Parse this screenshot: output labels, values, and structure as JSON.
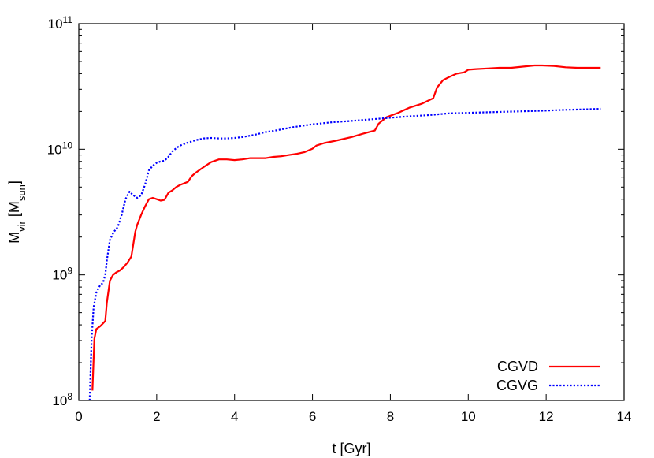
{
  "chart_data": {
    "type": "line",
    "title": "",
    "xlabel": "t [Gyr]",
    "ylabel": {
      "base": "M",
      "base_subscript": "vir",
      "unit_open": " [M",
      "unit_subscript": "sun",
      "unit_close": "]"
    },
    "xlim": [
      0,
      14
    ],
    "ylim": [
      100000000,
      100000000000
    ],
    "yscale": "log",
    "x_ticks": [
      "0",
      "2",
      "4",
      "6",
      "8",
      "10",
      "12",
      "14"
    ],
    "y_ticks": [
      {
        "base": "10",
        "exp": "8"
      },
      {
        "base": "10",
        "exp": "9"
      },
      {
        "base": "10",
        "exp": "10"
      },
      {
        "base": "10",
        "exp": "11"
      }
    ],
    "grid": false,
    "legend_position": "bottom-right",
    "series": [
      {
        "name": "CGVD",
        "color": "#ff0000",
        "style": "solid",
        "x": [
          0.35,
          0.4,
          0.45,
          0.5,
          0.55,
          0.62,
          0.68,
          0.72,
          0.8,
          0.88,
          0.97,
          1.05,
          1.15,
          1.25,
          1.35,
          1.45,
          1.5,
          1.6,
          1.7,
          1.8,
          1.9,
          2.0,
          2.1,
          2.2,
          2.3,
          2.4,
          2.5,
          2.6,
          2.8,
          2.9,
          3.0,
          3.2,
          3.4,
          3.6,
          3.8,
          4.0,
          4.2,
          4.4,
          4.6,
          4.8,
          5.0,
          5.2,
          5.4,
          5.6,
          5.8,
          6.0,
          6.1,
          6.3,
          6.6,
          7.0,
          7.3,
          7.6,
          7.7,
          7.9,
          8.2,
          8.5,
          8.8,
          9.1,
          9.2,
          9.35,
          9.5,
          9.7,
          9.9,
          10.0,
          10.2,
          10.5,
          10.8,
          11.1,
          11.4,
          11.7,
          11.9,
          12.2,
          12.5,
          12.8,
          13.1,
          13.4
        ],
        "y": [
          120000000,
          310000000,
          370000000,
          380000000,
          390000000,
          410000000,
          430000000,
          600000000,
          900000000,
          1000000000,
          1050000000,
          1080000000,
          1150000000,
          1250000000,
          1400000000,
          2200000000,
          2500000000,
          3000000000,
          3500000000,
          4000000000,
          4100000000,
          4000000000,
          3900000000,
          3950000000,
          4500000000,
          4700000000,
          5000000000,
          5200000000,
          5500000000,
          6100000000,
          6500000000,
          7200000000,
          7900000000,
          8300000000,
          8300000000,
          8200000000,
          8300000000,
          8500000000,
          8500000000,
          8500000000,
          8700000000,
          8800000000,
          9000000000,
          9200000000,
          9500000000,
          10100000000,
          10700000000,
          11200000000,
          11700000000,
          12500000000,
          13300000000,
          14100000000,
          16000000000,
          18000000000,
          19500000000,
          21500000000,
          23000000000,
          25500000000,
          31000000000,
          35500000000,
          37500000000,
          40000000000,
          41000000000,
          43000000000,
          43500000000,
          44000000000,
          44500000000,
          44500000000,
          45500000000,
          46500000000,
          46500000000,
          46000000000,
          45000000000,
          44500000000,
          44500000000,
          44500000000
        ]
      },
      {
        "name": "CGVG",
        "color": "#0000ff",
        "style": "dotted",
        "x": [
          0.28,
          0.33,
          0.38,
          0.45,
          0.55,
          0.62,
          0.68,
          0.72,
          0.8,
          0.9,
          1.0,
          1.1,
          1.2,
          1.3,
          1.4,
          1.5,
          1.6,
          1.7,
          1.8,
          1.9,
          2.0,
          2.1,
          2.2,
          2.3,
          2.4,
          2.5,
          2.6,
          2.8,
          3.0,
          3.2,
          3.4,
          3.6,
          3.8,
          4.0,
          4.2,
          4.5,
          4.8,
          5.0,
          5.5,
          6.0,
          6.5,
          7.0,
          7.5,
          8.0,
          8.5,
          9.0,
          9.5,
          10.0,
          10.5,
          11.0,
          11.5,
          12.0,
          12.5,
          13.0,
          13.4
        ],
        "y": [
          100000000,
          310000000,
          550000000,
          720000000,
          830000000,
          860000000,
          1000000000,
          1300000000,
          1900000000,
          2200000000,
          2400000000,
          3000000000,
          4000000000,
          4600000000,
          4300000000,
          4100000000,
          4300000000,
          5200000000,
          6800000000,
          7400000000,
          7800000000,
          8000000000,
          8100000000,
          8700000000,
          9600000000,
          10200000000,
          10700000000,
          11300000000,
          11800000000,
          12200000000,
          12300000000,
          12200000000,
          12200000000,
          12300000000,
          12500000000,
          13000000000,
          13700000000,
          14000000000,
          15000000000,
          15800000000,
          16400000000,
          16800000000,
          17300000000,
          17800000000,
          18300000000,
          18700000000,
          19300000000,
          19500000000,
          19700000000,
          19900000000,
          20100000000,
          20300000000,
          20600000000,
          20800000000,
          21000000000
        ]
      }
    ]
  }
}
